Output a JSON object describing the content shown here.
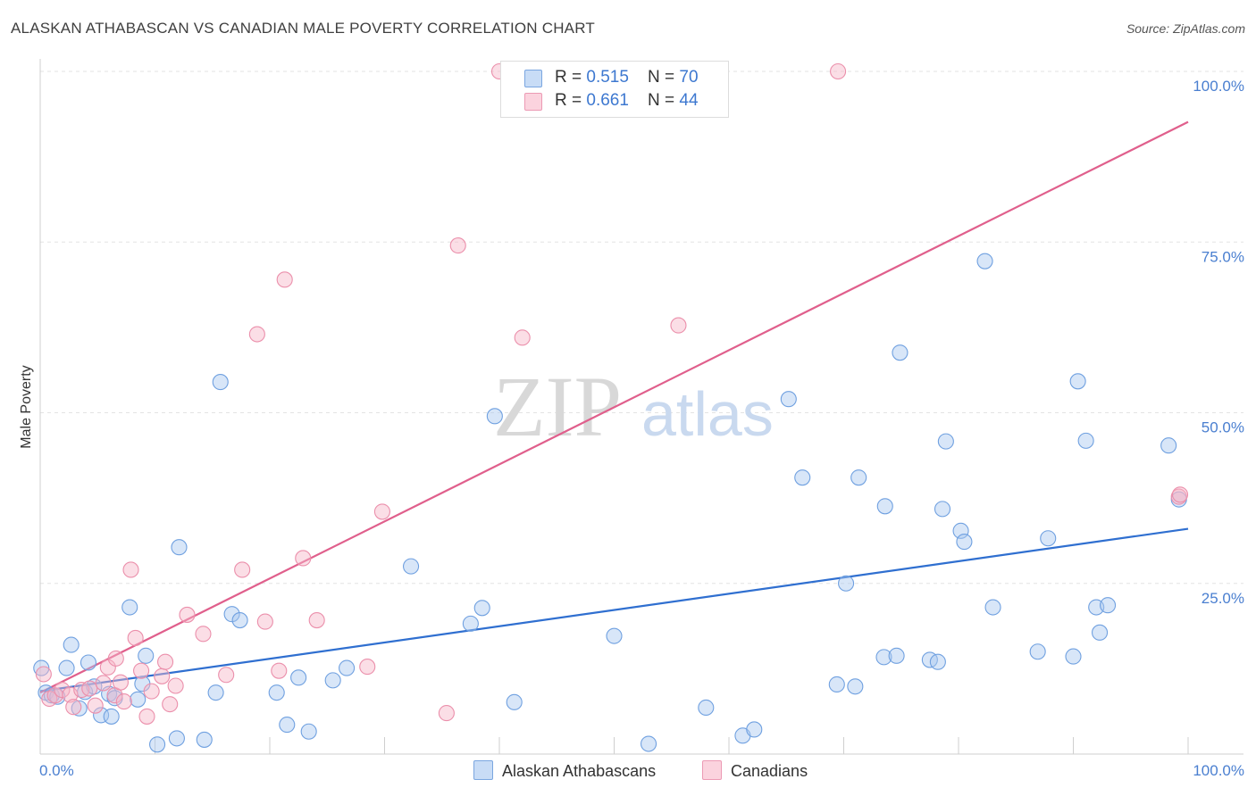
{
  "header": {
    "title": "ALASKAN ATHABASCAN VS CANADIAN MALE POVERTY CORRELATION CHART",
    "source": "Source: ZipAtlas.com"
  },
  "watermark": {
    "zip": "ZIP",
    "atlas": "atlas"
  },
  "legend": {
    "rows": [
      {
        "r_label": "R = ",
        "r_value": "0.515",
        "n_label": "N = ",
        "n_value": "70",
        "color": "#a8c8f0"
      },
      {
        "r_label": "R = ",
        "r_value": "0.661",
        "n_label": "N = ",
        "n_value": "44",
        "color": "#f7b6c8"
      }
    ]
  },
  "bottom_legend": {
    "items": [
      {
        "label": "Alaskan Athabascans",
        "color": "#a8c8f0"
      },
      {
        "label": "Canadians",
        "color": "#f7b6c8"
      }
    ]
  },
  "chart_data": {
    "type": "scatter",
    "title": "ALASKAN ATHABASCAN VS CANADIAN MALE POVERTY CORRELATION CHART",
    "xlabel": "",
    "ylabel": "Male Poverty",
    "xlim": [
      0,
      100
    ],
    "ylim": [
      0,
      100
    ],
    "x_tick_labels": {
      "left": "0.0%",
      "right": "100.0%"
    },
    "y_ticks": [
      {
        "value": 25,
        "label": "25.0%"
      },
      {
        "value": 50,
        "label": "50.0%"
      },
      {
        "value": 75,
        "label": "75.0%"
      },
      {
        "value": 100,
        "label": "100.0%"
      }
    ],
    "grid": true,
    "legend_position": "top-center",
    "series": [
      {
        "name": "Alaskan Athabascans",
        "color": "#6fa0e0",
        "fill": "#a8c8f0",
        "trend_color": "#2f6fd0",
        "trend": {
          "x0": 0,
          "y0": 9.2,
          "x1": 100,
          "y1": 33.0
        },
        "points": [
          [
            0.1,
            12.6
          ],
          [
            0.5,
            9.0
          ],
          [
            1.0,
            8.6
          ],
          [
            1.5,
            8.4
          ],
          [
            2.3,
            12.6
          ],
          [
            2.7,
            16.0
          ],
          [
            3.4,
            6.7
          ],
          [
            3.9,
            9.1
          ],
          [
            4.2,
            13.4
          ],
          [
            4.7,
            9.9
          ],
          [
            5.3,
            5.7
          ],
          [
            6.0,
            8.8
          ],
          [
            6.2,
            5.5
          ],
          [
            6.5,
            8.2
          ],
          [
            7.8,
            21.5
          ],
          [
            8.5,
            8.0
          ],
          [
            8.9,
            10.3
          ],
          [
            9.2,
            14.4
          ],
          [
            10.2,
            1.4
          ],
          [
            11.9,
            2.3
          ],
          [
            12.1,
            30.3
          ],
          [
            14.3,
            2.1
          ],
          [
            15.3,
            9.0
          ],
          [
            15.7,
            54.5
          ],
          [
            16.7,
            20.5
          ],
          [
            17.4,
            19.6
          ],
          [
            20.6,
            9.0
          ],
          [
            21.5,
            4.3
          ],
          [
            22.5,
            11.2
          ],
          [
            23.4,
            3.3
          ],
          [
            25.5,
            10.8
          ],
          [
            26.7,
            12.6
          ],
          [
            32.3,
            27.5
          ],
          [
            37.5,
            19.1
          ],
          [
            38.5,
            21.4
          ],
          [
            39.6,
            49.5
          ],
          [
            41.3,
            7.6
          ],
          [
            50.0,
            17.3
          ],
          [
            53.0,
            1.5
          ],
          [
            58.0,
            6.8
          ],
          [
            61.2,
            2.7
          ],
          [
            62.2,
            3.6
          ],
          [
            65.2,
            52.0
          ],
          [
            66.4,
            40.5
          ],
          [
            69.4,
            10.2
          ],
          [
            70.2,
            25.0
          ],
          [
            71.0,
            9.9
          ],
          [
            71.3,
            40.5
          ],
          [
            73.5,
            14.2
          ],
          [
            73.6,
            36.3
          ],
          [
            74.6,
            14.4
          ],
          [
            74.9,
            58.8
          ],
          [
            77.5,
            13.8
          ],
          [
            78.2,
            13.5
          ],
          [
            78.6,
            35.9
          ],
          [
            78.9,
            45.8
          ],
          [
            80.2,
            32.7
          ],
          [
            80.5,
            31.1
          ],
          [
            82.3,
            72.2
          ],
          [
            83.0,
            21.5
          ],
          [
            86.9,
            15.0
          ],
          [
            87.8,
            31.6
          ],
          [
            90.0,
            14.3
          ],
          [
            90.4,
            54.6
          ],
          [
            91.1,
            45.9
          ],
          [
            92.0,
            21.5
          ],
          [
            92.3,
            17.8
          ],
          [
            93.0,
            21.8
          ],
          [
            98.3,
            45.2
          ],
          [
            99.2,
            37.3
          ]
        ]
      },
      {
        "name": "Canadians",
        "color": "#eb8fab",
        "fill": "#f7b6c8",
        "trend_color": "#e05f8c",
        "trend": {
          "x0": 0,
          "y0": 9.0,
          "x1": 100,
          "y1": 92.6
        },
        "points": [
          [
            0.3,
            11.7
          ],
          [
            0.8,
            8.1
          ],
          [
            1.3,
            8.6
          ],
          [
            1.9,
            9.4
          ],
          [
            2.6,
            8.7
          ],
          [
            2.9,
            6.9
          ],
          [
            3.6,
            9.4
          ],
          [
            4.3,
            9.6
          ],
          [
            4.8,
            7.1
          ],
          [
            5.5,
            10.4
          ],
          [
            5.9,
            12.7
          ],
          [
            6.5,
            8.6
          ],
          [
            6.6,
            14.0
          ],
          [
            7.0,
            10.5
          ],
          [
            7.3,
            7.7
          ],
          [
            7.9,
            27.0
          ],
          [
            8.3,
            17.0
          ],
          [
            8.8,
            12.2
          ],
          [
            9.3,
            5.5
          ],
          [
            9.7,
            9.2
          ],
          [
            10.6,
            11.4
          ],
          [
            10.9,
            13.5
          ],
          [
            11.3,
            7.3
          ],
          [
            11.8,
            10.0
          ],
          [
            12.8,
            20.4
          ],
          [
            14.2,
            17.6
          ],
          [
            16.2,
            11.6
          ],
          [
            17.6,
            27.0
          ],
          [
            18.9,
            61.5
          ],
          [
            19.6,
            19.4
          ],
          [
            20.8,
            12.2
          ],
          [
            21.3,
            69.5
          ],
          [
            22.9,
            28.7
          ],
          [
            24.1,
            19.6
          ],
          [
            28.5,
            12.8
          ],
          [
            29.8,
            35.5
          ],
          [
            35.4,
            6.0
          ],
          [
            36.4,
            74.5
          ],
          [
            40.0,
            100.0
          ],
          [
            42.0,
            61.0
          ],
          [
            55.6,
            62.8
          ],
          [
            69.5,
            100.0
          ],
          [
            99.2,
            37.7
          ],
          [
            99.3,
            38.0
          ]
        ]
      }
    ]
  }
}
